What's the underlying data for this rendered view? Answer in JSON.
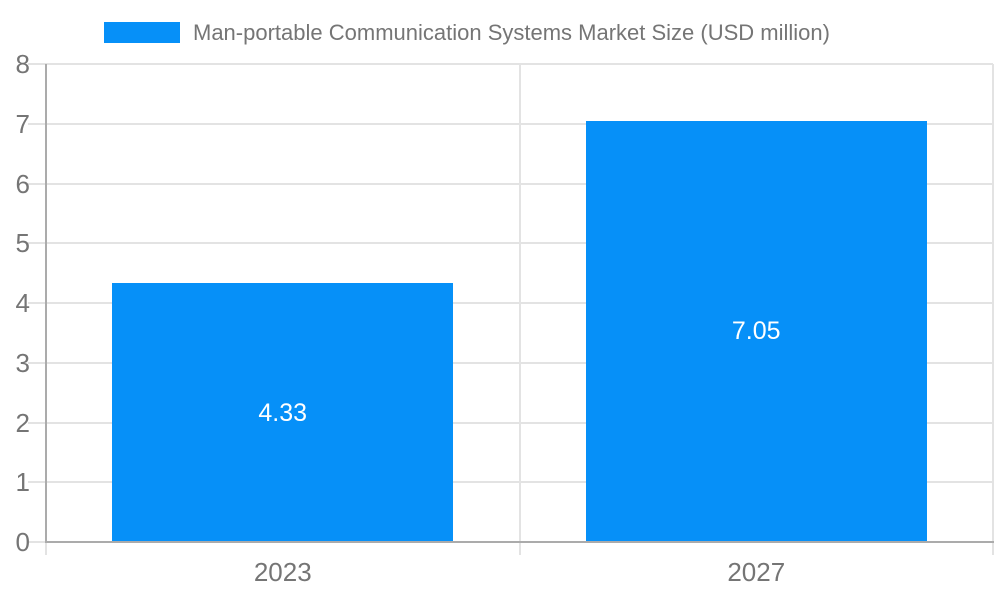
{
  "chart_data": {
    "type": "bar",
    "title": "",
    "legend": {
      "label": "Man-portable Communication Systems Market Size (USD million)",
      "position": "top"
    },
    "categories": [
      "2023",
      "2027"
    ],
    "series": [
      {
        "name": "Man-portable Communication Systems Market Size (USD million)",
        "values": [
          4.33,
          7.05
        ]
      }
    ],
    "data_labels": [
      "4.33",
      "7.05"
    ],
    "xlabel": "",
    "ylabel": "",
    "ylim": [
      0,
      8
    ],
    "ytick_labels": [
      "0",
      "1",
      "2",
      "3",
      "4",
      "5",
      "6",
      "7",
      "8"
    ],
    "grid": true,
    "colors": {
      "bar": "#0690f8",
      "gridline": "#e3e3e3",
      "axis": "#ababab",
      "tick_text": "#757575",
      "legend_text": "#757575",
      "data_label_text": "#ffffff",
      "background": "#ffffff"
    }
  }
}
